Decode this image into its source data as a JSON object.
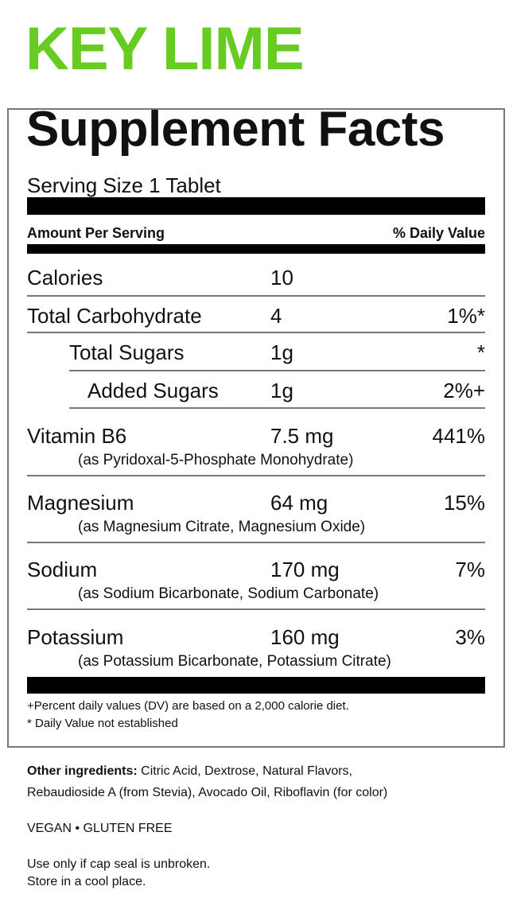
{
  "flavor": "KEY LIME",
  "brand_color": "#66cc22",
  "panel": {
    "title": "Supplement Facts",
    "serving_size": "Serving Size 1 Tablet",
    "amount_header": "Amount Per Serving",
    "dv_header": "% Daily Value",
    "rows": [
      {
        "name": "Calories",
        "amount": "10",
        "dv": ""
      },
      {
        "name": "Total Carbohydrate",
        "amount": "4",
        "dv": "1%*"
      },
      {
        "name": "Total Sugars",
        "amount": "1g",
        "dv": "*"
      },
      {
        "name": "Added Sugars",
        "amount": "1g",
        "dv": "2%+"
      },
      {
        "name": "Vitamin B6",
        "amount": "7.5 mg",
        "dv": "441%",
        "source": "(as Pyridoxal-5-Phosphate Monohydrate)"
      },
      {
        "name": "Magnesium",
        "amount": "64 mg",
        "dv": "15%",
        "source": "(as Magnesium Citrate, Magnesium Oxide)"
      },
      {
        "name": "Sodium",
        "amount": "170 mg",
        "dv": "7%",
        "source": "(as Sodium Bicarbonate, Sodium Carbonate)"
      },
      {
        "name": "Potassium",
        "amount": "160 mg",
        "dv": "3%",
        "source": "(as Potassium Bicarbonate, Potassium Citrate)"
      }
    ],
    "footnote_1": "+Percent daily values (DV) are based on a 2,000 calorie diet.",
    "footnote_2": "* Daily Value not established"
  },
  "other_ingredients": {
    "label": "Other ingredients:",
    "line_1": "Citric Acid, Dextrose, Natural Flavors,",
    "line_2": "Rebaudioside A (from Stevia), Avocado Oil, Riboflavin (for color)"
  },
  "claims": "VEGAN • GLUTEN FREE",
  "storage_1": "Use only if cap seal is unbroken.",
  "storage_2": "Store in a cool place."
}
